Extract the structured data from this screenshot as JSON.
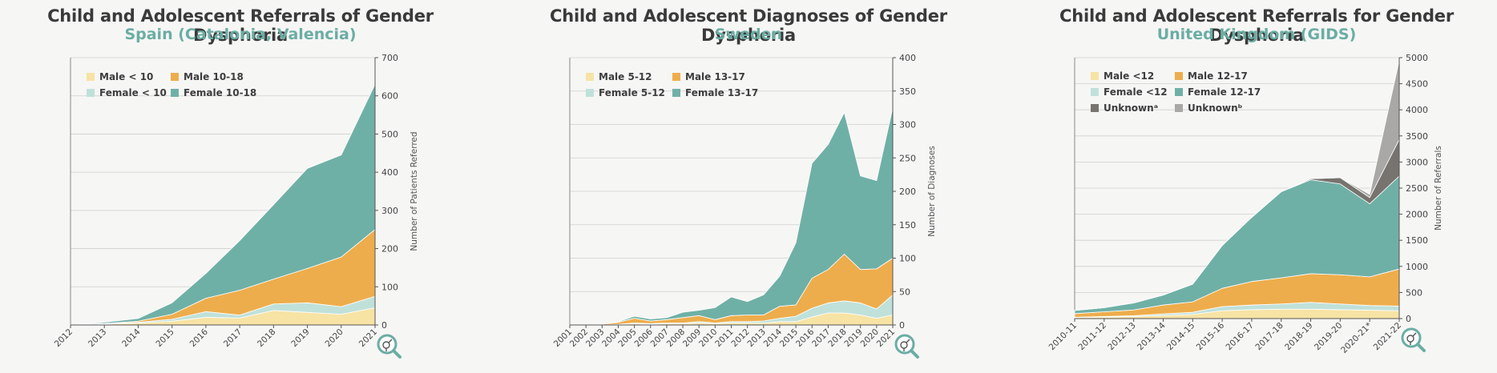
{
  "colors": {
    "male_young": "#f7e3a4",
    "male_teen": "#eead4c",
    "female_young": "#c0e1da",
    "female_teen": "#6fb0a6",
    "unknown_a": "#77736f",
    "unknown_b": "#aaa8a6",
    "title": "#3a3a3a",
    "subtitle": "#6bada4"
  },
  "charts": [
    {
      "title": "Child and Adolescent Referrals of Gender Dysphoria",
      "subtitle": "Spain (Catalonia, Valencia)",
      "icon": "magnifier-venus-mars-icon",
      "chart_data": {
        "type": "area",
        "stacked": true,
        "categories": [
          "2012",
          "2013",
          "2014",
          "2015",
          "2016",
          "2017",
          "2018",
          "2019",
          "2020",
          "2021"
        ],
        "series": [
          {
            "name": "Male < 10",
            "color": "male_young",
            "values": [
              0,
              2,
              5,
              10,
              20,
              18,
              38,
              33,
              28,
              45
            ]
          },
          {
            "name": "Female < 10",
            "color": "female_young",
            "values": [
              0,
              1,
              2,
              5,
              15,
              8,
              17,
              25,
              20,
              30
            ]
          },
          {
            "name": "Male 10-18",
            "color": "male_teen",
            "values": [
              0,
              1,
              3,
              13,
              35,
              65,
              65,
              90,
              130,
              175
            ]
          },
          {
            "name": "Female 10-18",
            "color": "female_teen",
            "values": [
              0,
              3,
              7,
              30,
              65,
              130,
              195,
              262,
              267,
              380
            ]
          }
        ],
        "ylabel": "Number of Patients Referred",
        "ylim": [
          0,
          700
        ],
        "yticks": [
          0,
          100,
          200,
          300,
          400,
          500,
          600,
          700
        ],
        "grid": true,
        "legend": "top-left",
        "legend_rows": [
          [
            "Male < 10",
            "Male 10-18"
          ],
          [
            "Female < 10",
            "Female 10-18"
          ]
        ]
      }
    },
    {
      "title": "Child and Adolescent Diagnoses of Gender Dysphoria",
      "subtitle": "Sweden",
      "icon": "magnifier-venus-mars-icon",
      "chart_data": {
        "type": "area",
        "stacked": true,
        "categories": [
          "2001",
          "2002",
          "2003",
          "2004",
          "2005",
          "2006",
          "2007",
          "2008",
          "2009",
          "2010",
          "2011",
          "2012",
          "2013",
          "2014",
          "2015",
          "2016",
          "2017",
          "2018",
          "2019",
          "2020",
          "2021"
        ],
        "series": [
          {
            "name": "Male 5-12",
            "color": "male_young",
            "values": [
              0,
              0,
              0,
              1,
              2,
              1,
              2,
              2,
              3,
              2,
              3,
              3,
              3,
              5,
              5,
              12,
              18,
              18,
              15,
              10,
              15
            ]
          },
          {
            "name": "Female 5-12",
            "color": "female_young",
            "values": [
              0,
              0,
              0,
              0,
              1,
              1,
              1,
              1,
              2,
              1,
              2,
              2,
              3,
              5,
              8,
              13,
              15,
              18,
              18,
              14,
              30
            ]
          },
          {
            "name": "Male 13-17",
            "color": "male_teen",
            "values": [
              0,
              0,
              1,
              3,
              7,
              4,
              5,
              8,
              9,
              5,
              9,
              10,
              9,
              18,
              17,
              45,
              50,
              70,
              50,
              60,
              55
            ]
          },
          {
            "name": "Female 13-17",
            "color": "female_teen",
            "values": [
              0,
              0,
              0,
              1,
              3,
              3,
              3,
              8,
              8,
              18,
              28,
              20,
              30,
              45,
              93,
              172,
              187,
              212,
              140,
              132,
              225
            ]
          }
        ],
        "ylabel": "Number of Diagnoses",
        "ylim": [
          0,
          400
        ],
        "yticks": [
          0,
          50,
          100,
          150,
          200,
          250,
          300,
          350,
          400
        ],
        "grid": true,
        "legend": "top-left",
        "legend_rows": [
          [
            "Male 5-12",
            "Male 13-17"
          ],
          [
            "Female 5-12",
            "Female 13-17"
          ]
        ]
      }
    },
    {
      "title": "Child and Adolescent Referrals for Gender Dysphoria",
      "subtitle": "United Kingdom (GIDS)",
      "icon": "magnifier-venus-mars-icon",
      "chart_data": {
        "type": "area",
        "stacked": true,
        "categories": [
          "2010-11",
          "2011-12",
          "2012-13",
          "2013-14",
          "2014-15",
          "2015-16",
          "2016-17",
          "2017-18",
          "2018-19",
          "2019-20",
          "2020-21*",
          "2021-22"
        ],
        "series": [
          {
            "name": "Male <12",
            "color": "male_young",
            "values": [
              20,
              30,
              40,
              60,
              80,
              150,
              170,
              180,
              180,
              170,
              160,
              150
            ]
          },
          {
            "name": "Female <12",
            "color": "female_young",
            "values": [
              5,
              10,
              15,
              30,
              40,
              80,
              90,
              100,
              130,
              110,
              90,
              90
            ]
          },
          {
            "name": "Male 12-17",
            "color": "male_teen",
            "values": [
              70,
              90,
              110,
              170,
              200,
              350,
              450,
              500,
              550,
              560,
              550,
              710
            ]
          },
          {
            "name": "Female 12-17",
            "color": "female_teen",
            "values": [
              60,
              80,
              135,
              190,
              340,
              820,
              1230,
              1650,
              1800,
              1740,
              1400,
              1780
            ]
          },
          {
            "name": "Unknownᵃ",
            "color": "unknown_a",
            "values": [
              0,
              0,
              0,
              0,
              0,
              0,
              0,
              0,
              20,
              120,
              120,
              700
            ]
          },
          {
            "name": "Unknownᵇ",
            "color": "unknown_b",
            "values": [
              0,
              0,
              0,
              0,
              0,
              0,
              0,
              0,
              0,
              0,
              60,
              1520
            ]
          }
        ],
        "ylabel": "Number of Referrals",
        "ylim": [
          0,
          5000
        ],
        "yticks": [
          0,
          500,
          1000,
          1500,
          2000,
          2500,
          3000,
          3500,
          4000,
          4500,
          5000
        ],
        "grid": true,
        "legend": "top-left",
        "legend_rows": [
          [
            "Male <12",
            "Male 12-17"
          ],
          [
            "Female <12",
            "Female 12-17"
          ],
          [
            "Unknownᵃ",
            "Unknownᵇ"
          ]
        ]
      }
    }
  ]
}
